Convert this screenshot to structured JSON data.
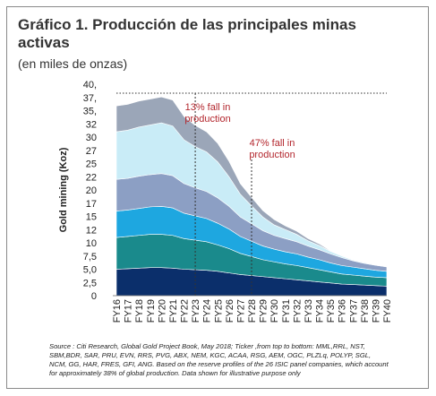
{
  "chart_data": {
    "type": "stacked_area",
    "title": "Gráfico 1. Producción de las principales minas activas",
    "subtitle": "(en miles de onzas)",
    "ylabel": "Gold mining (Koz)",
    "categories": [
      "FY16",
      "FY17",
      "FY18",
      "FY19",
      "FY20",
      "FY21",
      "FY22",
      "FY23",
      "FY24",
      "FY25",
      "FY26",
      "FY27",
      "FY28",
      "FY29",
      "FY30",
      "FY31",
      "FY32",
      "FY33",
      "FY34",
      "FY35",
      "FY36",
      "FY37",
      "FY38",
      "FY39",
      "FY40"
    ],
    "series": [
      {
        "color": "#0b2f6b",
        "values": [
          5000,
          5100,
          5200,
          5300,
          5300,
          5200,
          5000,
          4900,
          4800,
          4600,
          4300,
          4000,
          3800,
          3600,
          3400,
          3200,
          3000,
          2800,
          2600,
          2400,
          2200,
          2100,
          2000,
          1900,
          1800
        ]
      },
      {
        "color": "#1a8a8c",
        "values": [
          6000,
          6100,
          6200,
          6300,
          6300,
          6200,
          5800,
          5600,
          5400,
          5000,
          4600,
          4000,
          3600,
          3200,
          3000,
          2800,
          2700,
          2500,
          2300,
          2100,
          1900,
          1800,
          1700,
          1600,
          1600
        ]
      },
      {
        "color": "#1ea7e0",
        "values": [
          5000,
          5000,
          5100,
          5200,
          5300,
          5200,
          4800,
          4600,
          4400,
          4100,
          3700,
          3200,
          2900,
          2600,
          2400,
          2300,
          2200,
          2000,
          1900,
          1700,
          1600,
          1500,
          1400,
          1300,
          1200
        ]
      },
      {
        "color": "#8c9fc4",
        "values": [
          6000,
          6000,
          6100,
          6100,
          6200,
          6100,
          5600,
          5300,
          5100,
          4800,
          4300,
          3700,
          3300,
          2900,
          2600,
          2500,
          2300,
          2100,
          1900,
          1700,
          1500,
          1200,
          1000,
          950,
          850
        ]
      },
      {
        "color": "#c9ecf7",
        "values": [
          9000,
          9100,
          9300,
          9400,
          9600,
          9400,
          8300,
          7800,
          7500,
          6800,
          5600,
          4300,
          3400,
          2600,
          2000,
          1700,
          1400,
          1000,
          800,
          500,
          300,
          150,
          150,
          100,
          100
        ]
      },
      {
        "color": "#9ba6b8",
        "values": [
          4900,
          4900,
          4900,
          4900,
          4900,
          4900,
          4400,
          4000,
          3800,
          3500,
          2900,
          2000,
          1600,
          1200,
          1000,
          700,
          600,
          400,
          300,
          100,
          100,
          50,
          50,
          50,
          50
        ]
      }
    ],
    "ylim": [
      0,
      40000
    ],
    "yticks": [
      {
        "value": 40000,
        "label": "40,"
      },
      {
        "value": 37500,
        "label": "37,"
      },
      {
        "value": 35000,
        "label": "35,"
      },
      {
        "value": 32500,
        "label": "32"
      },
      {
        "value": 30000,
        "label": "30"
      },
      {
        "value": 27500,
        "label": "27"
      },
      {
        "value": 25000,
        "label": "25"
      },
      {
        "value": 22500,
        "label": "22"
      },
      {
        "value": 20000,
        "label": "20"
      },
      {
        "value": 17500,
        "label": "17"
      },
      {
        "value": 15000,
        "label": "15"
      },
      {
        "value": 12500,
        "label": "12"
      },
      {
        "value": 10000,
        "label": "10"
      },
      {
        "value": 7500,
        "label": "7,5"
      },
      {
        "value": 5000,
        "label": "5,0"
      },
      {
        "value": 2500,
        "label": "2,5"
      },
      0
    ],
    "annotations": [
      "13% fall in production",
      "47% fall in production"
    ],
    "source": "Source : Citi Research, Global Gold Project Book, May 2018; Ticker ,from top to bottom: MML,RRL, NST, SBM,BDR, SAR, PRU, EVN, RRS, PVG, ABX, NEM, KGC, ACAA, RSG, AEM, OGC, PLZLq, POLYP, SGL, NCM, GG, HAR, FRES, GFI, ANG. Based on the reserve profiles of the 26 ISIC panel companies, which account for approximately 38% of global production. Data shown for illustrative purpose only"
  }
}
